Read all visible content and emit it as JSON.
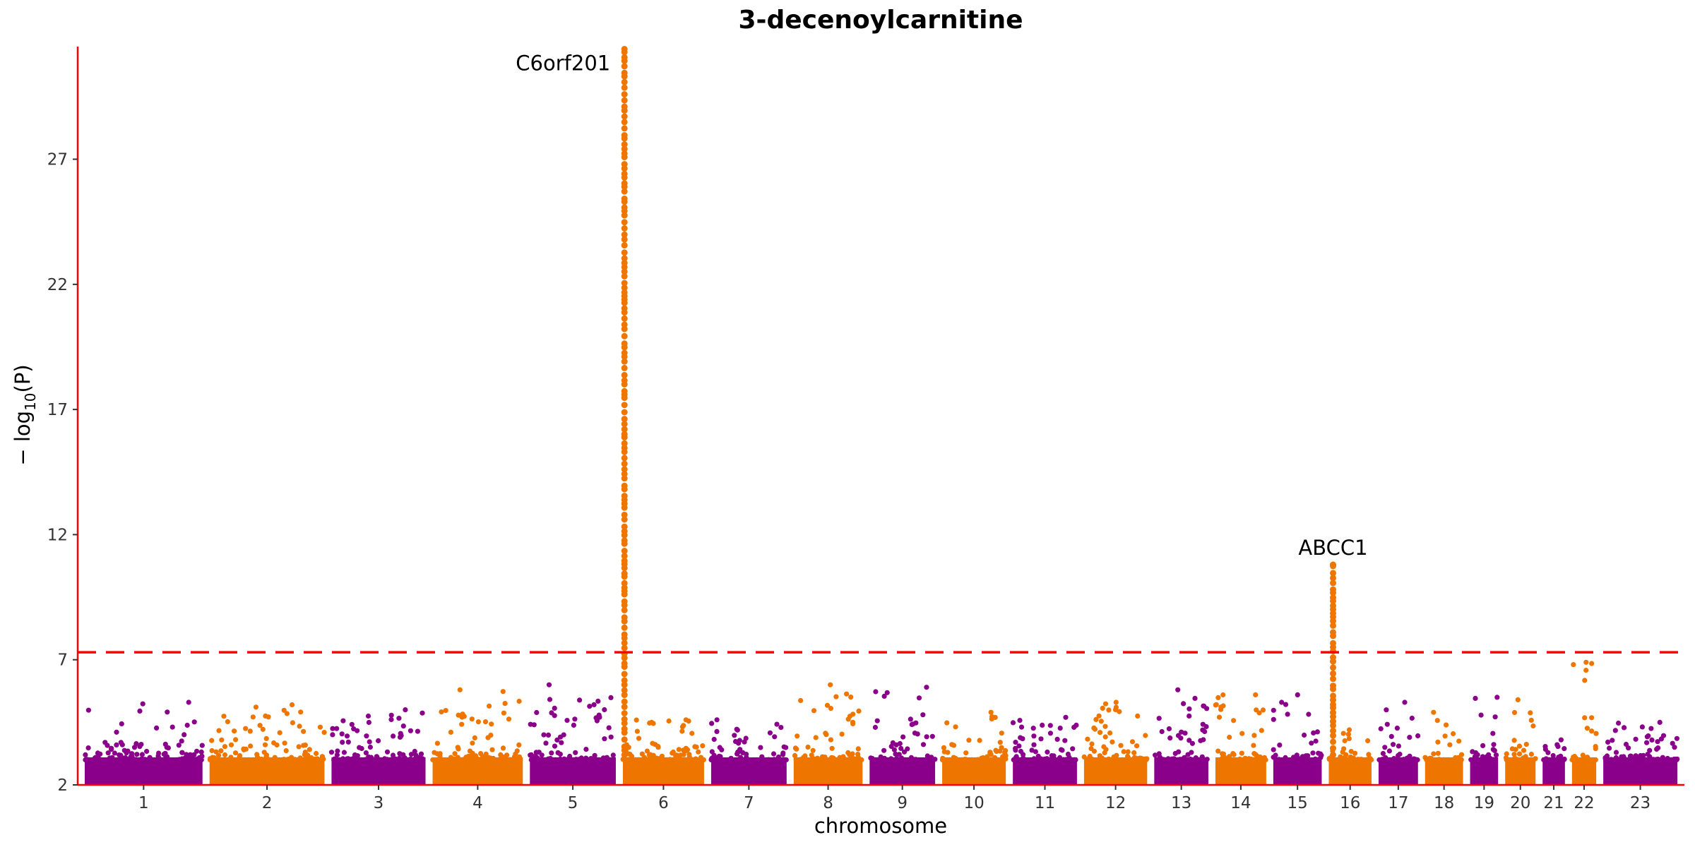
{
  "chart_data": {
    "type": "scatter",
    "title": "3-decenoylcarnitine",
    "xlabel": "chromosome",
    "ylabel_parts": {
      "prefix": "− log",
      "sub": "10",
      "suffix": "(P)"
    },
    "ylim": [
      2,
      31.5
    ],
    "yticks": [
      2,
      7,
      12,
      17,
      22,
      27
    ],
    "threshold": 7.3,
    "grid": false,
    "colors": {
      "odd": "#8B008B",
      "even": "#EE7600",
      "threshold": "#FF0000",
      "axis": "#FF0000"
    },
    "chromosomes": [
      {
        "label": "1",
        "size": 248,
        "max": 5.3
      },
      {
        "label": "2",
        "size": 242,
        "max": 5.2
      },
      {
        "label": "3",
        "size": 198,
        "max": 5.0
      },
      {
        "label": "4",
        "size": 190,
        "max": 5.8
      },
      {
        "label": "5",
        "size": 181,
        "max": 6.0
      },
      {
        "label": "6",
        "size": 171,
        "max": 4.6
      },
      {
        "label": "7",
        "size": 159,
        "max": 4.6
      },
      {
        "label": "8",
        "size": 145,
        "max": 6.0
      },
      {
        "label": "9",
        "size": 138,
        "max": 5.9
      },
      {
        "label": "10",
        "size": 134,
        "max": 4.9
      },
      {
        "label": "11",
        "size": 135,
        "max": 4.7
      },
      {
        "label": "12",
        "size": 133,
        "max": 5.3
      },
      {
        "label": "13",
        "size": 114,
        "max": 5.8
      },
      {
        "label": "14",
        "size": 107,
        "max": 5.6
      },
      {
        "label": "15",
        "size": 102,
        "max": 5.6
      },
      {
        "label": "16",
        "size": 90,
        "max": 4.2
      },
      {
        "label": "17",
        "size": 83,
        "max": 5.3
      },
      {
        "label": "18",
        "size": 80,
        "max": 4.9
      },
      {
        "label": "19",
        "size": 59,
        "max": 5.5
      },
      {
        "label": "20",
        "size": 64,
        "max": 5.4
      },
      {
        "label": "21",
        "size": 47,
        "max": 3.8
      },
      {
        "label": "22",
        "size": 51,
        "max": 6.9
      },
      {
        "label": "23",
        "size": 156,
        "max": 4.5
      }
    ],
    "peaks": [
      {
        "label": "C6orf201",
        "chromosome": "6",
        "position": 0.02,
        "max": 31.4
      },
      {
        "label": "ABCC1",
        "chromosome": "16",
        "position": 0.1,
        "max": 10.8
      }
    ]
  }
}
